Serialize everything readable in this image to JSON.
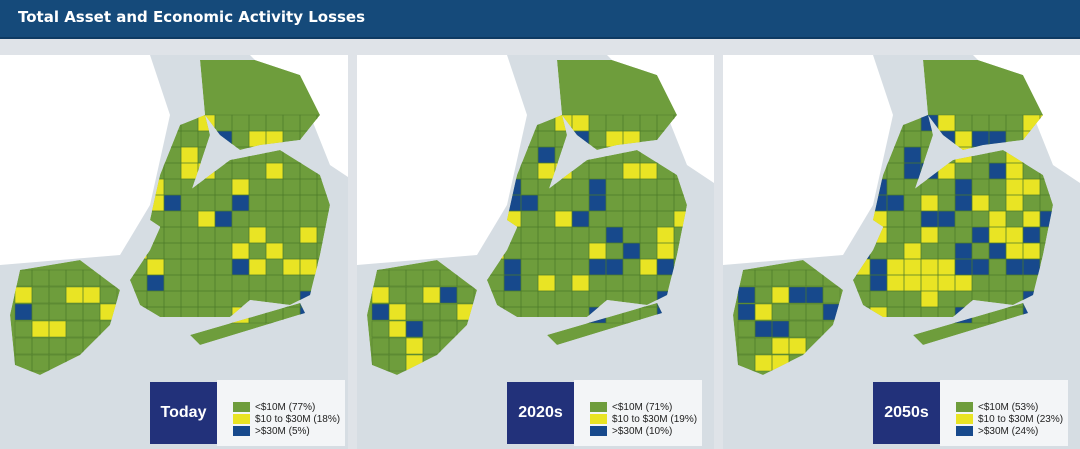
{
  "header": {
    "title": "Total Asset and Economic Activity Losses"
  },
  "colors": {
    "low": "#6e9d3c",
    "mid": "#e9e424",
    "high": "#17498c",
    "water": "#d6dde3",
    "land": "#ffffff",
    "label_bg": "#22317a"
  },
  "panels": [
    {
      "label": "Today",
      "legend": [
        "<$10M (77%)",
        "$10 to $30M (18%)",
        ">$30M (5%)"
      ],
      "shares": [
        0.77,
        0.18,
        0.05
      ]
    },
    {
      "label": "2020s",
      "legend": [
        "<$10M (71%)",
        "$10 to $30M (19%)",
        ">$30M (10%)"
      ],
      "shares": [
        0.71,
        0.19,
        0.1
      ]
    },
    {
      "label": "2050s",
      "legend": [
        "<$10M (53%)",
        "$10 to $30M (23%)",
        ">$30M (24%)"
      ],
      "shares": [
        0.53,
        0.23,
        0.24
      ]
    }
  ]
}
